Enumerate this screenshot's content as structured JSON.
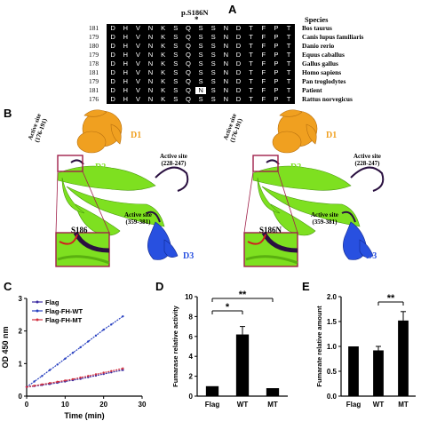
{
  "panels": {
    "a": "A",
    "b": "B",
    "c": "C",
    "d": "D",
    "e": "E"
  },
  "alignment": {
    "mutation_label": "p.S186N",
    "star": "*",
    "species_header": "Species",
    "rows": [
      {
        "num": "181",
        "seq": [
          "D",
          "H",
          "V",
          "N",
          "K",
          "S",
          "Q",
          "S",
          "S",
          "N",
          "D",
          "T",
          "F",
          "P",
          "T"
        ],
        "species": "Bos taurus"
      },
      {
        "num": "179",
        "seq": [
          "D",
          "H",
          "V",
          "N",
          "K",
          "S",
          "Q",
          "S",
          "S",
          "N",
          "D",
          "T",
          "F",
          "P",
          "T"
        ],
        "species": "Canis lupus familiaris"
      },
      {
        "num": "180",
        "seq": [
          "D",
          "H",
          "V",
          "N",
          "K",
          "S",
          "Q",
          "S",
          "S",
          "N",
          "D",
          "T",
          "F",
          "P",
          "T"
        ],
        "species": "Danio rerio"
      },
      {
        "num": "179",
        "seq": [
          "D",
          "H",
          "V",
          "N",
          "K",
          "S",
          "Q",
          "S",
          "S",
          "N",
          "D",
          "T",
          "F",
          "P",
          "T"
        ],
        "species": "Equus caballus"
      },
      {
        "num": "178",
        "seq": [
          "D",
          "H",
          "V",
          "N",
          "K",
          "S",
          "Q",
          "S",
          "S",
          "N",
          "D",
          "T",
          "F",
          "P",
          "T"
        ],
        "species": "Gallus gallus"
      },
      {
        "num": "181",
        "seq": [
          "D",
          "H",
          "V",
          "N",
          "K",
          "S",
          "Q",
          "S",
          "S",
          "N",
          "D",
          "T",
          "F",
          "P",
          "T"
        ],
        "species": "Homo sapiens"
      },
      {
        "num": "179",
        "seq": [
          "D",
          "H",
          "V",
          "N",
          "K",
          "S",
          "Q",
          "S",
          "S",
          "N",
          "D",
          "T",
          "F",
          "P",
          "T"
        ],
        "species": "Pan troglodytes"
      },
      {
        "num": "181",
        "seq": [
          "D",
          "H",
          "V",
          "N",
          "K",
          "S",
          "Q",
          "N",
          "S",
          "N",
          "D",
          "T",
          "F",
          "P",
          "T"
        ],
        "species": "Patient",
        "highlight": 7
      },
      {
        "num": "176",
        "seq": [
          "D",
          "H",
          "V",
          "N",
          "K",
          "S",
          "Q",
          "S",
          "S",
          "N",
          "D",
          "T",
          "F",
          "P",
          "T"
        ],
        "species": "Rattus norvegicus"
      }
    ]
  },
  "structure_left": {
    "d1": "D1",
    "d2": "D2",
    "d3": "D3",
    "site1": "Active site",
    "site1_range": "(176-191)",
    "site2": "Active site",
    "site2_range": "(228-247)",
    "site3": "Active site",
    "site3_range": "(359-381)",
    "residue": "S186"
  },
  "structure_right": {
    "d1": "D1",
    "d2": "D2",
    "d3": "D3",
    "site1": "Active site",
    "site1_range": "(176-191)",
    "site2": "Active site",
    "site2_range": "(228-247)",
    "site3": "Active site",
    "site3_range": "(359-381)",
    "residue": "S186N"
  },
  "colors": {
    "d1": "#f0a020",
    "d2": "#7ee020",
    "d3": "#2850e0",
    "loop": "#2a1040",
    "box": "#a0204a",
    "flag": "#3a2aa0",
    "wt": "#2840c0",
    "mt": "#d03040",
    "bar": "#000000"
  },
  "chart_data": [
    {
      "type": "line",
      "xlabel": "Time (min)",
      "ylabel": "OD 450 nm",
      "xlim": [
        0,
        30
      ],
      "ylim": [
        0,
        3
      ],
      "xticks": [
        0,
        10,
        20,
        30
      ],
      "yticks": [
        0,
        1,
        2,
        3
      ],
      "x": [
        0,
        2,
        4,
        6,
        8,
        10,
        12,
        14,
        16,
        18,
        20,
        22,
        25
      ],
      "series": [
        {
          "name": "Flag",
          "values": [
            0.28,
            0.31,
            0.34,
            0.37,
            0.41,
            0.45,
            0.49,
            0.53,
            0.58,
            0.63,
            0.68,
            0.73,
            0.8
          ]
        },
        {
          "name": "Flag-FH-WT",
          "values": [
            0.28,
            0.45,
            0.62,
            0.8,
            0.97,
            1.15,
            1.33,
            1.5,
            1.68,
            1.86,
            2.04,
            2.2,
            2.45
          ]
        },
        {
          "name": "Flag-FH-MT",
          "values": [
            0.28,
            0.32,
            0.36,
            0.4,
            0.44,
            0.48,
            0.52,
            0.57,
            0.62,
            0.67,
            0.72,
            0.77,
            0.85
          ]
        }
      ],
      "legend": "top-left"
    },
    {
      "type": "bar",
      "ylabel": "Fumarase relative activity",
      "categories": [
        "Flag",
        "WT",
        "MT"
      ],
      "values": [
        1.0,
        6.2,
        0.8
      ],
      "errors": [
        0.0,
        0.8,
        0.0
      ],
      "ylim": [
        0,
        10
      ],
      "yticks": [
        0,
        2,
        4,
        6,
        8,
        10
      ],
      "annotations": [
        {
          "from": "Flag",
          "to": "WT",
          "text": "*"
        },
        {
          "from": "Flag",
          "to": "MT",
          "text": "**"
        }
      ]
    },
    {
      "type": "bar",
      "ylabel": "Fumarate relative amount",
      "categories": [
        "Flag",
        "WT",
        "MT"
      ],
      "values": [
        1.0,
        0.92,
        1.52
      ],
      "errors": [
        0.0,
        0.08,
        0.18
      ],
      "ylim": [
        0,
        2.0
      ],
      "yticks": [
        0,
        0.5,
        1.0,
        1.5,
        2.0
      ],
      "annotations": [
        {
          "from": "WT",
          "to": "MT",
          "text": "**"
        }
      ]
    }
  ]
}
